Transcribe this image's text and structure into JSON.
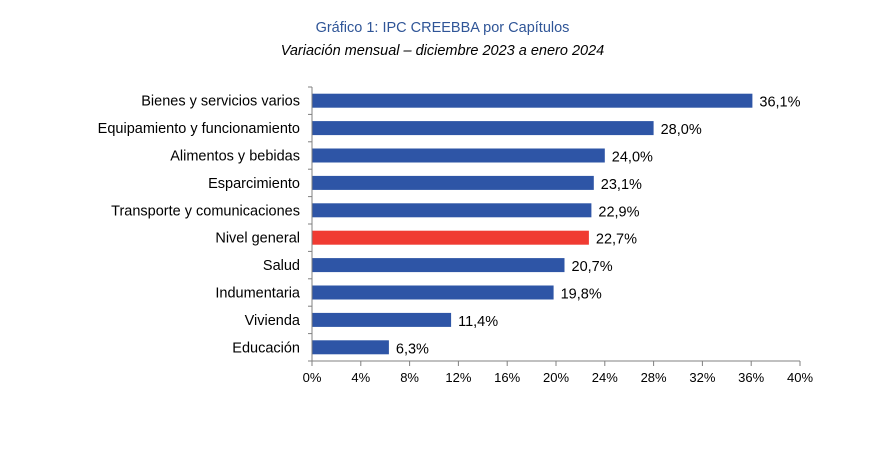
{
  "header": {
    "title": "Gráfico 1: IPC CREEBBA por Capítulos",
    "subtitle": "Variación mensual – diciembre 2023 a enero 2024"
  },
  "colors": {
    "bar": "#2e55a6",
    "highlight": "#f03b32",
    "axis": "#808080"
  },
  "chart_data": {
    "type": "bar",
    "orientation": "horizontal",
    "title": "Gráfico 1: IPC CREEBBA por Capítulos",
    "subtitle": "Variación mensual – diciembre 2023 a enero 2024",
    "categories": [
      "Bienes y servicios varios",
      "Equipamiento y funcionamiento",
      "Alimentos y bebidas",
      "Esparcimiento",
      "Transporte y comunicaciones",
      "Nivel general",
      "Salud",
      "Indumentaria",
      "Vivienda",
      "Educación"
    ],
    "values": [
      36.1,
      28.0,
      24.0,
      23.1,
      22.9,
      22.7,
      20.7,
      19.8,
      11.4,
      6.3
    ],
    "value_labels": [
      "36,1%",
      "28,0%",
      "24,0%",
      "23,1%",
      "22,9%",
      "22,7%",
      "20,7%",
      "19,8%",
      "11,4%",
      "6,3%"
    ],
    "highlight_category": "Nivel general",
    "xlim": [
      0,
      40
    ],
    "xticks": [
      0,
      4,
      8,
      12,
      16,
      20,
      24,
      28,
      32,
      36,
      40
    ],
    "xtick_labels": [
      "0%",
      "4%",
      "8%",
      "12%",
      "16%",
      "20%",
      "24%",
      "28%",
      "32%",
      "36%",
      "40%"
    ],
    "xlabel": "",
    "ylabel": "",
    "grid": false,
    "legend": false
  }
}
